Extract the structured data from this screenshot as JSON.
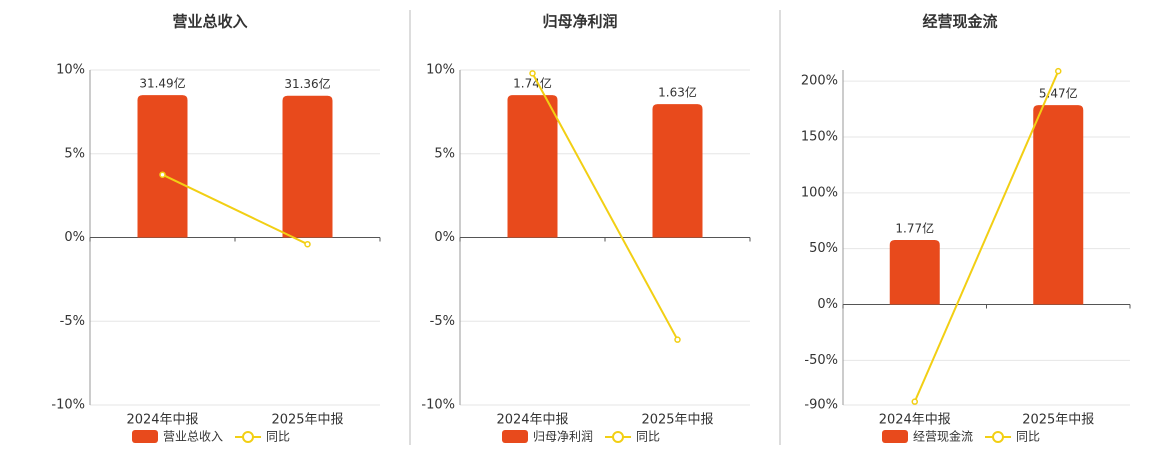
{
  "chart_data": [
    {
      "type": "bar_line",
      "title": "营业总收入",
      "categories": [
        "2024年中报",
        "2025年中报"
      ],
      "series": [
        {
          "name": "营业总收入",
          "color": "#e84a1c",
          "values": [
            31.49,
            31.36
          ],
          "value_labels": [
            "31.49亿",
            "31.36亿"
          ]
        },
        {
          "name": "同比",
          "color": "#f2cf14",
          "values": [
            3.75,
            -0.4
          ]
        }
      ],
      "ylim": [
        -10,
        10
      ],
      "yticks": [
        {
          "value": -10,
          "label": "-10%"
        },
        {
          "value": -5,
          "label": "-5%"
        },
        {
          "value": 0,
          "label": "0%"
        },
        {
          "value": 5,
          "label": "5%"
        },
        {
          "value": 10,
          "label": "10%"
        }
      ],
      "grid": true
    },
    {
      "type": "bar_line",
      "title": "归母净利润",
      "categories": [
        "2024年中报",
        "2025年中报"
      ],
      "series": [
        {
          "name": "归母净利润",
          "color": "#e84a1c",
          "values": [
            1.74,
            1.63
          ],
          "value_labels": [
            "1.74亿",
            "1.63亿"
          ]
        },
        {
          "name": "同比",
          "color": "#f2cf14",
          "values": [
            9.8,
            -6.1
          ]
        }
      ],
      "ylim": [
        -10,
        10
      ],
      "yticks": [
        {
          "value": -10,
          "label": "-10%"
        },
        {
          "value": -5,
          "label": "-5%"
        },
        {
          "value": 0,
          "label": "0%"
        },
        {
          "value": 5,
          "label": "5%"
        },
        {
          "value": 10,
          "label": "10%"
        }
      ],
      "grid": true
    },
    {
      "type": "bar_line",
      "title": "经营现金流",
      "categories": [
        "2024年中报",
        "2025年中报"
      ],
      "series": [
        {
          "name": "经营现金流",
          "color": "#e84a1c",
          "values": [
            1.77,
            5.47
          ],
          "value_labels": [
            "1.77亿",
            "5.47亿"
          ]
        },
        {
          "name": "同比",
          "color": "#f2cf14",
          "values": [
            -87,
            209
          ]
        }
      ],
      "ylim": [
        -90,
        210
      ],
      "yticks": [
        {
          "value": -90,
          "label": "-90%"
        },
        {
          "value": -50,
          "label": "-50%"
        },
        {
          "value": 0,
          "label": "0%"
        },
        {
          "value": 50,
          "label": "50%"
        },
        {
          "value": 100,
          "label": "100%"
        },
        {
          "value": 150,
          "label": "150%"
        },
        {
          "value": 200,
          "label": "200%"
        }
      ],
      "grid": true
    }
  ]
}
